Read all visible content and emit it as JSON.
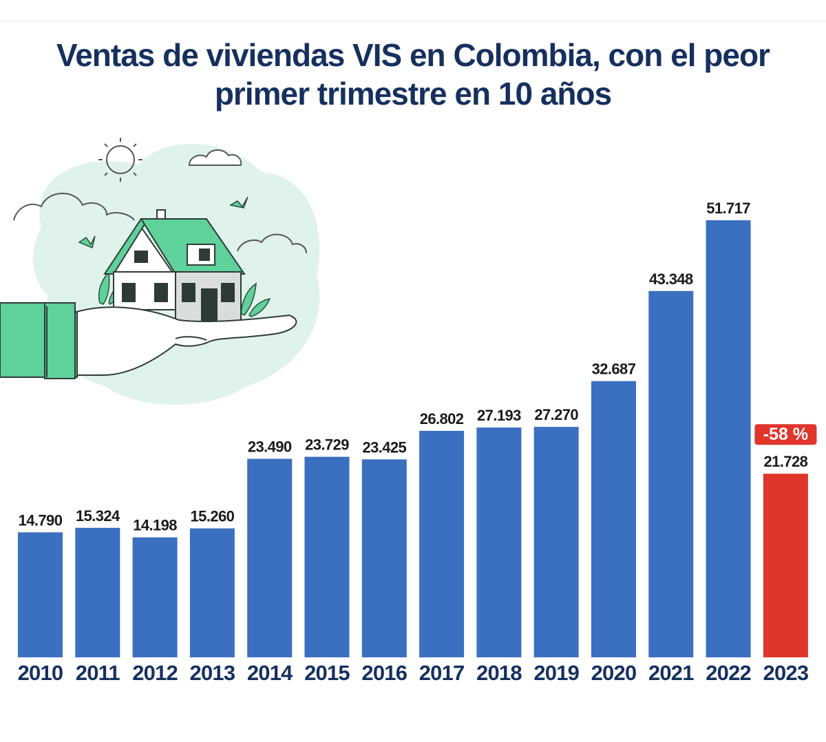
{
  "title": "Ventas de viviendas VIS en Colombia, con el peor primer trimestre en 10 años",
  "colors": {
    "bar": "#3b6fc0",
    "highlight_bar": "#e0352b",
    "title": "#16305e",
    "illustration_bg": "#dff3ea",
    "illustration_green": "#5fd19b"
  },
  "illustration": {
    "description_icons": [
      "house-icon",
      "hand-icon",
      "sun-icon",
      "cloud-icon",
      "bird-icon"
    ]
  },
  "chart_data": {
    "type": "bar",
    "categories": [
      "2010",
      "2011",
      "2012",
      "2013",
      "2014",
      "2015",
      "2016",
      "2017",
      "2018",
      "2019",
      "2020",
      "2021",
      "2022",
      "2023"
    ],
    "values": [
      14790,
      15324,
      14198,
      15260,
      23490,
      23729,
      23425,
      26802,
      27193,
      27270,
      32687,
      43348,
      51717,
      21728
    ],
    "value_labels": [
      "14.790",
      "15.324",
      "14.198",
      "15.260",
      "23.490",
      "23.729",
      "23.425",
      "26.802",
      "27.193",
      "27.270",
      "32.687",
      "43.348",
      "51.717",
      "21.728"
    ],
    "highlight_index": 13,
    "highlight_annotation": "-58 %",
    "title": "Ventas de viviendas VIS en Colombia, con el peor primer trimestre en 10 años",
    "xlabel": "",
    "ylabel": "",
    "ylim": [
      0,
      51717
    ],
    "grid": false,
    "legend": "none"
  }
}
